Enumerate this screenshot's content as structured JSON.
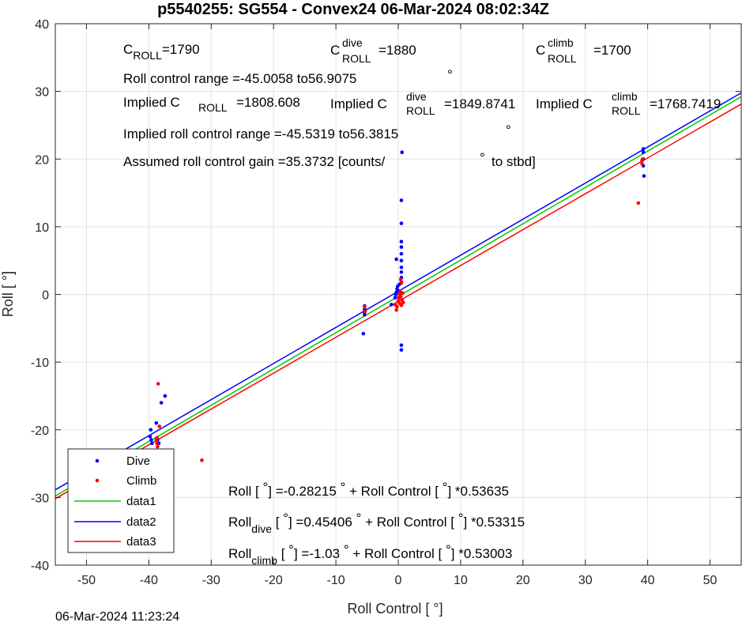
{
  "chart_data": {
    "type": "scatter",
    "title": "p5540255: SG554 - Convex24 06-Mar-2024 08:02:34Z",
    "xlabel": "Roll Control [   °]",
    "ylabel": "Roll [  °]",
    "xlim": [
      -55,
      55
    ],
    "ylim": [
      -40,
      40
    ],
    "xticks": [
      -50,
      -40,
      -30,
      -20,
      -10,
      0,
      10,
      20,
      30,
      40,
      50
    ],
    "yticks": [
      -40,
      -30,
      -20,
      -10,
      0,
      10,
      20,
      30,
      40
    ],
    "xtick_labels": [
      "-50",
      "-40",
      "-30",
      "-20",
      "-10",
      "0",
      "10",
      "20",
      "30",
      "40",
      "50"
    ],
    "ytick_labels": [
      "-40",
      "-30",
      "-20",
      "-10",
      "0",
      "10",
      "20",
      "30",
      "40"
    ],
    "grid": true,
    "legend_position": "bottom-left",
    "series": [
      {
        "name": "Dive",
        "kind": "points",
        "color": "#0000ff",
        "points": [
          [
            -39.7,
            -20.0
          ],
          [
            -39.8,
            -21.0
          ],
          [
            -39.6,
            -21.5
          ],
          [
            -39.5,
            -22.0
          ],
          [
            -39.4,
            -23.3
          ],
          [
            -38.8,
            -19.0
          ],
          [
            -38.6,
            -21.5
          ],
          [
            -38.4,
            -22.0
          ],
          [
            -38.0,
            -16.0
          ],
          [
            -37.4,
            -15.0
          ],
          [
            -5.4,
            -1.7
          ],
          [
            -5.4,
            -2.2
          ],
          [
            -5.4,
            -2.6
          ],
          [
            -5.4,
            -3.0
          ],
          [
            -5.6,
            -5.8
          ],
          [
            -1.1,
            -1.5
          ],
          [
            -0.5,
            -0.5
          ],
          [
            -0.4,
            0.0
          ],
          [
            -0.3,
            0.3
          ],
          [
            -0.2,
            0.8
          ],
          [
            -0.1,
            1.2
          ],
          [
            -0.3,
            5.2
          ],
          [
            0.0,
            -1.0
          ],
          [
            0.1,
            0.5
          ],
          [
            0.2,
            1.5
          ],
          [
            0.5,
            13.9
          ],
          [
            0.5,
            10.5
          ],
          [
            0.5,
            7.8
          ],
          [
            0.5,
            7.0
          ],
          [
            0.5,
            6.0
          ],
          [
            0.5,
            5.0
          ],
          [
            0.5,
            4.0
          ],
          [
            0.5,
            3.3
          ],
          [
            0.5,
            2.5
          ],
          [
            0.5,
            1.8
          ],
          [
            0.6,
            21.0
          ],
          [
            0.5,
            -7.5
          ],
          [
            0.5,
            -8.2
          ],
          [
            39.3,
            21.0
          ],
          [
            39.3,
            21.5
          ],
          [
            39.3,
            20.0
          ],
          [
            39.3,
            19.0
          ],
          [
            39.4,
            17.5
          ]
        ]
      },
      {
        "name": "Climb",
        "kind": "points",
        "color": "#ff0000",
        "points": [
          [
            -38.8,
            -21.5
          ],
          [
            -38.7,
            -22.0
          ],
          [
            -38.6,
            -22.5
          ],
          [
            -38.7,
            -21.2
          ],
          [
            -38.5,
            -13.2
          ],
          [
            -38.3,
            -19.5
          ],
          [
            -31.5,
            -24.5
          ],
          [
            -5.4,
            -1.8
          ],
          [
            -5.3,
            -2.5
          ],
          [
            -0.5,
            -1.5
          ],
          [
            -0.3,
            -2.3
          ],
          [
            -0.2,
            -1.8
          ],
          [
            0.0,
            -1.0
          ],
          [
            0.1,
            -0.5
          ],
          [
            0.2,
            0.0
          ],
          [
            0.3,
            0.4
          ],
          [
            0.4,
            -0.3
          ],
          [
            0.5,
            -1.6
          ],
          [
            0.6,
            -0.8
          ],
          [
            0.7,
            0.2
          ],
          [
            0.8,
            -1.2
          ],
          [
            0.5,
            1.7
          ],
          [
            0.4,
            2.2
          ],
          [
            0.2,
            -1.3
          ],
          [
            38.5,
            13.5
          ],
          [
            39.1,
            19.3
          ],
          [
            39.1,
            19.8
          ],
          [
            39.2,
            20.0
          ]
        ]
      },
      {
        "name": "data1",
        "kind": "line",
        "color": "#00cc00",
        "intercept": -0.28215,
        "slope": 0.53635
      },
      {
        "name": "data2",
        "kind": "line",
        "color": "#0000ff",
        "intercept": 0.45406,
        "slope": 0.53315
      },
      {
        "name": "data3",
        "kind": "line",
        "color": "#ff0000",
        "intercept": -1.03,
        "slope": 0.53003
      }
    ],
    "annotations": {
      "c_roll": {
        "base": "C",
        "sub": "ROLL",
        "value": "=1790"
      },
      "c_roll_dive": {
        "base": "C",
        "sup": "dive",
        "sub": "ROLL",
        "value": "=1880"
      },
      "c_roll_climb": {
        "base": "C",
        "sup": "climb",
        "sub": "ROLL",
        "value": "=1700"
      },
      "roll_range": "Roll control range =-45.0058 to56.9075",
      "implied_c": {
        "base": "Implied C",
        "sub": "ROLL",
        "value": "=1808.608"
      },
      "implied_c_dive": {
        "base": "Implied C",
        "sup": "dive",
        "sub": "ROLL",
        "value": "=1849.8741"
      },
      "implied_c_climb": {
        "base": "Implied C",
        "sup": "climb",
        "sub": "ROLL",
        "value": "=1768.7419"
      },
      "implied_range": "Implied roll control range =-45.5319 to56.3815",
      "gain_text": "Assumed roll control gain =35.3732 [counts/",
      "gain_tail": "to stbd]",
      "degree_mark": "°",
      "fit_all": {
        "a": "Roll [  ",
        "b": "] =-0.28215 ",
        "c": " + Roll Control [  ",
        "d": "] *0.53635"
      },
      "fit_dive": {
        "base": "Roll",
        "sub": "dive",
        "a": " [  ",
        "b": "] =0.45406 ",
        "c": " + Roll Control [  ",
        "d": "] *0.53315"
      },
      "fit_climb": {
        "base": "Roll",
        "sub": "climb",
        "a": " [  ",
        "b": "] =-1.03 ",
        "c": " + Roll Control [  ",
        "d": "] *0.53003"
      }
    }
  },
  "footer_timestamp": "06-Mar-2024 11:23:24"
}
